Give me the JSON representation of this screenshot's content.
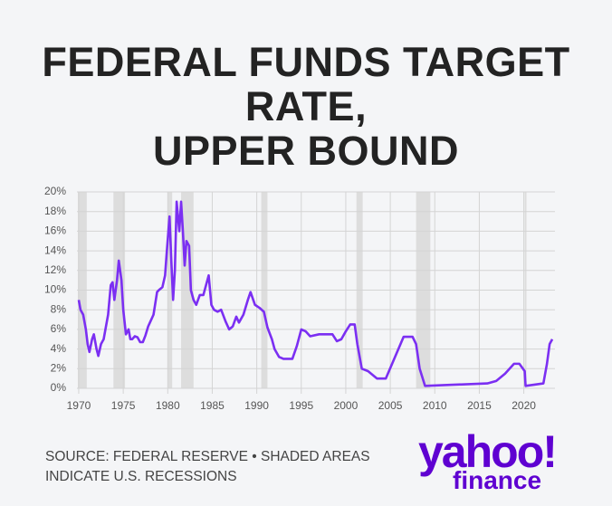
{
  "chart_data": {
    "type": "line",
    "title": "FEDERAL FUNDS TARGET\nRATE,\nUPPER BOUND",
    "source": "SOURCE: FEDERAL RESERVE • SHADED AREAS\nINDICATE U.S. RECESSIONS",
    "logo": {
      "main": "yahoo!",
      "sub": "finance"
    },
    "x": [
      1970.0,
      1970.2,
      1970.5,
      1970.8,
      1971.0,
      1971.2,
      1971.5,
      1971.7,
      1972.0,
      1972.2,
      1972.5,
      1972.8,
      1973.0,
      1973.3,
      1973.6,
      1973.8,
      1974.0,
      1974.3,
      1974.5,
      1974.8,
      1975.0,
      1975.3,
      1975.6,
      1975.8,
      1976.0,
      1976.3,
      1976.6,
      1976.9,
      1977.2,
      1977.5,
      1977.8,
      1978.0,
      1978.4,
      1978.8,
      1979.0,
      1979.4,
      1979.7,
      1979.9,
      1980.2,
      1980.4,
      1980.6,
      1980.8,
      1981.0,
      1981.3,
      1981.5,
      1981.7,
      1981.9,
      1982.1,
      1982.4,
      1982.6,
      1982.9,
      1983.2,
      1983.6,
      1984.0,
      1984.3,
      1984.6,
      1984.9,
      1985.2,
      1985.6,
      1986.0,
      1986.5,
      1986.9,
      1987.3,
      1987.7,
      1988.0,
      1988.5,
      1989.0,
      1989.3,
      1989.8,
      1990.3,
      1990.8,
      1991.2,
      1991.7,
      1992.0,
      1992.5,
      1993.0,
      1994.0,
      1994.5,
      1995.0,
      1995.5,
      1996.0,
      1997.0,
      1998.5,
      1999.0,
      1999.5,
      2000.0,
      2000.5,
      2001.0,
      2001.3,
      2001.8,
      2002.5,
      2003.5,
      2004.5,
      2006.5,
      2007.5,
      2007.9,
      2008.3,
      2008.9,
      2015.9,
      2016.9,
      2017.9,
      2018.9,
      2019.5,
      2020.1,
      2020.2,
      2022.2,
      2022.6,
      2022.9,
      2023.2
    ],
    "series": [
      {
        "name": "Federal funds target rate, upper bound",
        "color": "#7b2ff2",
        "values": [
          9,
          8,
          7.5,
          6,
          4.5,
          3.7,
          5,
          5.5,
          4,
          3.3,
          4.5,
          5,
          6,
          7.5,
          10.5,
          10.8,
          9,
          11,
          13,
          11,
          8,
          5.5,
          6,
          5,
          5,
          5.3,
          5.2,
          4.7,
          4.7,
          5.4,
          6.3,
          6.7,
          7.5,
          9.8,
          10,
          10.3,
          11.5,
          14,
          17.5,
          13,
          9,
          12,
          19,
          16,
          19,
          16,
          12.5,
          15,
          14.5,
          10,
          9,
          8.5,
          9.5,
          9.5,
          10.5,
          11.5,
          8.5,
          8,
          7.8,
          8,
          6.8,
          6,
          6.3,
          7.3,
          6.7,
          7.5,
          9,
          9.8,
          8.5,
          8.2,
          7.8,
          6.2,
          5,
          4,
          3.2,
          3,
          3,
          4.3,
          6,
          5.8,
          5.3,
          5.5,
          5.5,
          4.8,
          5,
          5.8,
          6.5,
          6.5,
          4.5,
          2,
          1.75,
          1,
          1,
          5.25,
          5.25,
          4.5,
          2,
          0.25,
          0.5,
          0.75,
          1.5,
          2.5,
          2.5,
          1.75,
          0.25,
          0.5,
          2.5,
          4.5,
          5
        ]
      }
    ],
    "recessions": [
      [
        1969.9,
        1970.9
      ],
      [
        1973.9,
        1975.2
      ],
      [
        1980.0,
        1980.5
      ],
      [
        1981.5,
        1982.9
      ],
      [
        1990.5,
        1991.2
      ],
      [
        2001.2,
        2001.9
      ],
      [
        2007.9,
        2009.5
      ],
      [
        2020.1,
        2020.3
      ]
    ],
    "recession_color": "#dddddd",
    "xlim": [
      1969.8,
      2023.5
    ],
    "xticks": [
      1970,
      1975,
      1980,
      1985,
      1990,
      1995,
      2000,
      2005,
      2010,
      2015,
      2020
    ],
    "ylim": [
      0,
      20
    ],
    "yticks": [
      {
        "value": 0,
        "label": "0%"
      },
      {
        "value": 2,
        "label": "2%"
      },
      {
        "value": 4,
        "label": "4%"
      },
      {
        "value": 6,
        "label": "6%"
      },
      {
        "value": 8,
        "label": "8%"
      },
      {
        "value": 10,
        "label": "10%"
      },
      {
        "value": 12,
        "label": "12%"
      },
      {
        "value": 14,
        "label": "14%"
      },
      {
        "value": 16,
        "label": "16%"
      },
      {
        "value": 18,
        "label": "18%"
      },
      {
        "value": 20,
        "label": "20%"
      }
    ],
    "grid": true
  }
}
